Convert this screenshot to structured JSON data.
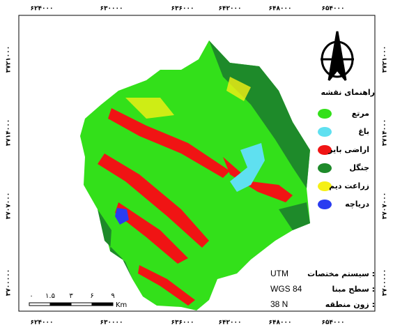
{
  "map": {
    "x_labels": [
      "۶۲۴۰۰۰",
      "۶۳۰۰۰۰",
      "۶۳۶۰۰۰",
      "۶۴۲۰۰۰",
      "۶۴۸۰۰۰",
      "۶۵۴۰۰۰"
    ],
    "y_labels": [
      "۳۷۲۱۰۰۰",
      "۳۷۱۴۰۰۰",
      "۳۷۰۷۰۰۰",
      "۳۷۰۰۰۰۰"
    ],
    "legend": {
      "title": "راهنمای نقشه",
      "items": [
        {
          "name": "مرتع",
          "color": "#33e01a"
        },
        {
          "name": "باغ",
          "color": "#5fe0f0"
        },
        {
          "name": "اراضی بایر",
          "color": "#f01414"
        },
        {
          "name": "جنگل",
          "color": "#1e8a2a"
        },
        {
          "name": "زراعت دیم",
          "color": "#f5f014"
        },
        {
          "name": "دریاچه",
          "color": "#2a3cf0"
        }
      ]
    },
    "info": [
      {
        "label": "سیستم مختصات :",
        "value": "UTM"
      },
      {
        "label": "سطح مبنا :",
        "value": "WGS 84"
      },
      {
        "label": "زون منطقه :",
        "value": "38 N"
      }
    ],
    "scale_bar": {
      "ticks": [
        "۰",
        "۱.۵",
        "۳",
        "۶",
        "۹"
      ],
      "unit": "Km"
    }
  }
}
